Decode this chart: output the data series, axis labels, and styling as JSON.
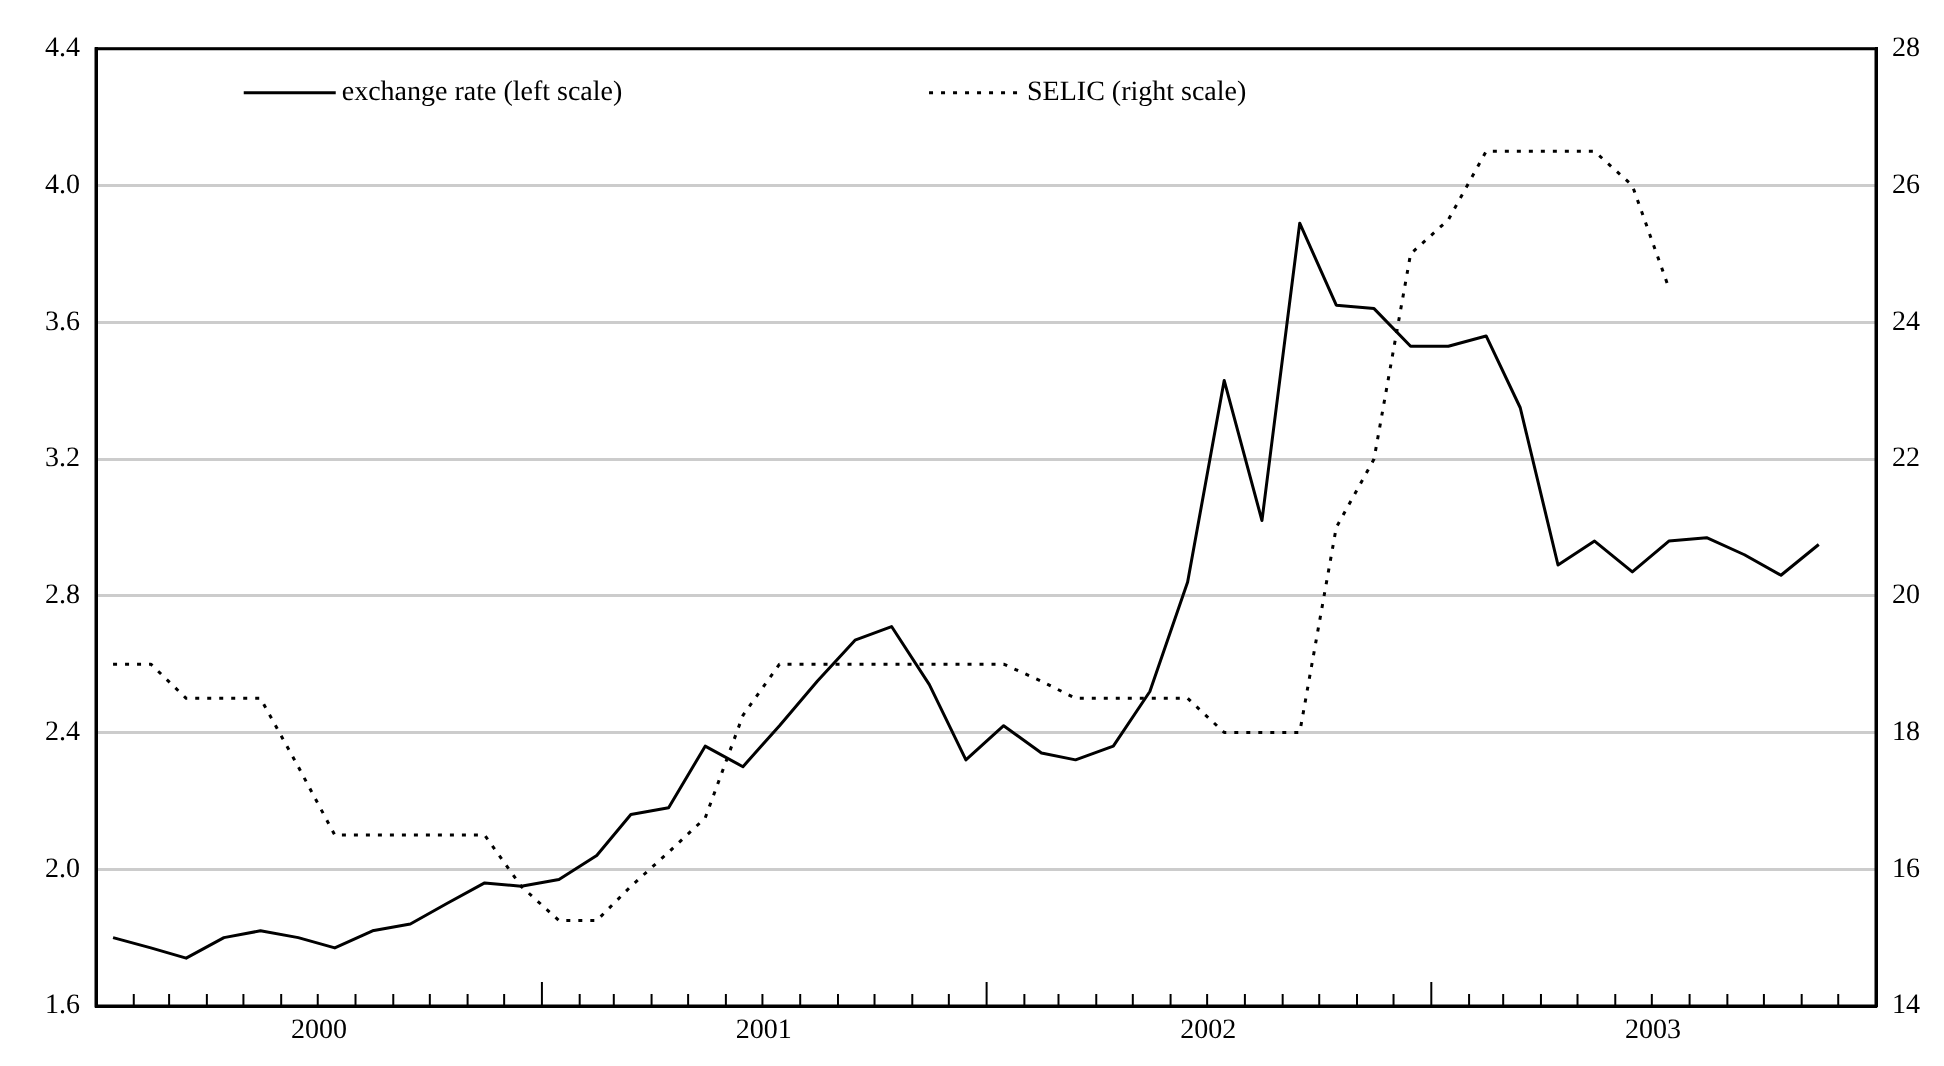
{
  "chart_data": {
    "type": "line",
    "legend": "top",
    "grid": "y",
    "marker": "none",
    "x": [
      "2000-01-15",
      "2000-02-15",
      "2000-03-15",
      "2000-04-15",
      "2000-05-15",
      "2000-06-15",
      "2000-07-15",
      "2000-08-15",
      "2000-09-15",
      "2000-10-15",
      "2000-11-15",
      "2000-12-15",
      "2001-01-15",
      "2001-02-15",
      "2001-03-15",
      "2001-04-15",
      "2001-05-15",
      "2001-06-15",
      "2001-07-15",
      "2001-08-15",
      "2001-09-15",
      "2001-10-15",
      "2001-11-15",
      "2001-12-15",
      "2002-01-15",
      "2002-02-15",
      "2002-03-15",
      "2002-04-15",
      "2002-05-15",
      "2002-06-15",
      "2002-07-15",
      "2002-08-15",
      "2002-09-15",
      "2002-10-15",
      "2002-11-15",
      "2002-12-15",
      "2003-01-15",
      "2003-02-15",
      "2003-03-15",
      "2003-04-15",
      "2003-05-15",
      "2003-06-15",
      "2003-07-15",
      "2003-08-15",
      "2003-09-15",
      "2003-10-15",
      "2003-11-15"
    ],
    "series": [
      {
        "name": "exchange rate (left scale)",
        "color": "#000000",
        "line_style": "solid",
        "values": [
          1.8,
          1.77,
          1.74,
          1.8,
          1.82,
          1.8,
          1.77,
          1.82,
          1.84,
          1.9,
          1.96,
          1.95,
          1.97,
          2.04,
          2.16,
          2.18,
          2.36,
          2.3,
          2.42,
          2.55,
          2.67,
          2.71,
          2.54,
          2.32,
          2.42,
          2.34,
          2.32,
          2.36,
          2.52,
          2.84,
          3.43,
          3.02,
          3.89,
          3.65,
          3.64,
          3.53,
          3.53,
          3.56,
          3.35,
          2.89,
          2.96,
          2.87,
          2.96,
          2.97,
          2.92,
          2.86,
          2.95
        ]
      },
      {
        "name": "SELIC (right scale)",
        "color": "#000000",
        "line_style": "dotted",
        "axis": "y2",
        "values": [
          19,
          19,
          18.5,
          18.5,
          18.5,
          17.5,
          16.5,
          16.5,
          16.5,
          16.5,
          16.5,
          15.75,
          15.25,
          15.25,
          15.75,
          16.25,
          16.75,
          18.25,
          19,
          19,
          19,
          19,
          19,
          19,
          19,
          18.75,
          18.5,
          18.5,
          18.5,
          18.5,
          18,
          18,
          18,
          21,
          22,
          25,
          25.5,
          26.5,
          26.5,
          26.5,
          26.5,
          26,
          24.5,
          null,
          null,
          null,
          null
        ]
      }
    ],
    "xlim": [
      "2000-01-01",
      "2004-01-01"
    ],
    "xticks": [
      {
        "value": "2000-02-01",
        "label": null
      },
      {
        "value": "2000-03-01",
        "label": null
      },
      {
        "value": "2000-04-01",
        "label": null
      },
      {
        "value": "2000-05-01",
        "label": null
      },
      {
        "value": "2000-06-01",
        "label": null
      },
      {
        "value": "2000-07-01",
        "label": null
      },
      {
        "value": "2000-08-01",
        "label": null
      },
      {
        "value": "2000-09-01",
        "label": null
      },
      {
        "value": "2000-10-01",
        "label": null
      },
      {
        "value": "2000-11-01",
        "label": null
      },
      {
        "value": "2000-12-01",
        "label": null
      },
      {
        "value": "2001-01-01",
        "label": null
      },
      {
        "value": "2001-02-01",
        "label": null
      },
      {
        "value": "2001-03-01",
        "label": null
      },
      {
        "value": "2001-04-01",
        "label": null
      },
      {
        "value": "2001-05-01",
        "label": null
      },
      {
        "value": "2001-06-01",
        "label": null
      },
      {
        "value": "2001-07-01",
        "label": null
      },
      {
        "value": "2001-08-01",
        "label": null
      },
      {
        "value": "2001-09-01",
        "label": null
      },
      {
        "value": "2001-10-01",
        "label": null
      },
      {
        "value": "2001-11-01",
        "label": null
      },
      {
        "value": "2001-12-01",
        "label": null
      },
      {
        "value": "2002-01-01",
        "label": null
      },
      {
        "value": "2002-02-01",
        "label": null
      },
      {
        "value": "2002-03-01",
        "label": null
      },
      {
        "value": "2002-04-01",
        "label": null
      },
      {
        "value": "2002-05-01",
        "label": null
      },
      {
        "value": "2002-06-01",
        "label": null
      },
      {
        "value": "2002-07-01",
        "label": null
      },
      {
        "value": "2002-08-01",
        "label": null
      },
      {
        "value": "2002-09-01",
        "label": null
      },
      {
        "value": "2002-10-01",
        "label": null
      },
      {
        "value": "2002-11-01",
        "label": null
      },
      {
        "value": "2002-12-01",
        "label": null
      },
      {
        "value": "2003-01-01",
        "label": null
      },
      {
        "value": "2003-02-01",
        "label": null
      },
      {
        "value": "2003-03-01",
        "label": null
      },
      {
        "value": "2003-04-01",
        "label": null
      },
      {
        "value": "2003-05-01",
        "label": null
      },
      {
        "value": "2003-06-01",
        "label": null
      },
      {
        "value": "2003-07-01",
        "label": null
      },
      {
        "value": "2003-08-01",
        "label": null
      },
      {
        "value": "2003-09-01",
        "label": null
      },
      {
        "value": "2003-10-01",
        "label": null
      },
      {
        "value": "2003-11-01",
        "label": null
      },
      {
        "value": "2003-12-01",
        "label": null
      },
      {
        "value": "2000-07-02",
        "label": "2000"
      },
      {
        "value": "2001-07-02",
        "label": "2001"
      },
      {
        "value": "2002-07-02",
        "label": "2002"
      },
      {
        "value": "2003-07-02",
        "label": "2003"
      }
    ],
    "ylim": [
      1.6,
      4.4
    ],
    "yticks": [
      1.6,
      {
        "value": 2,
        "label": "2.0"
      },
      2.4,
      2.8,
      3.2,
      3.6,
      {
        "value": 4,
        "label": "4.0"
      },
      4.4
    ],
    "y2lim": [
      14,
      28
    ],
    "y2ticks": [
      14,
      16,
      18,
      20,
      22,
      24,
      26,
      28
    ]
  }
}
